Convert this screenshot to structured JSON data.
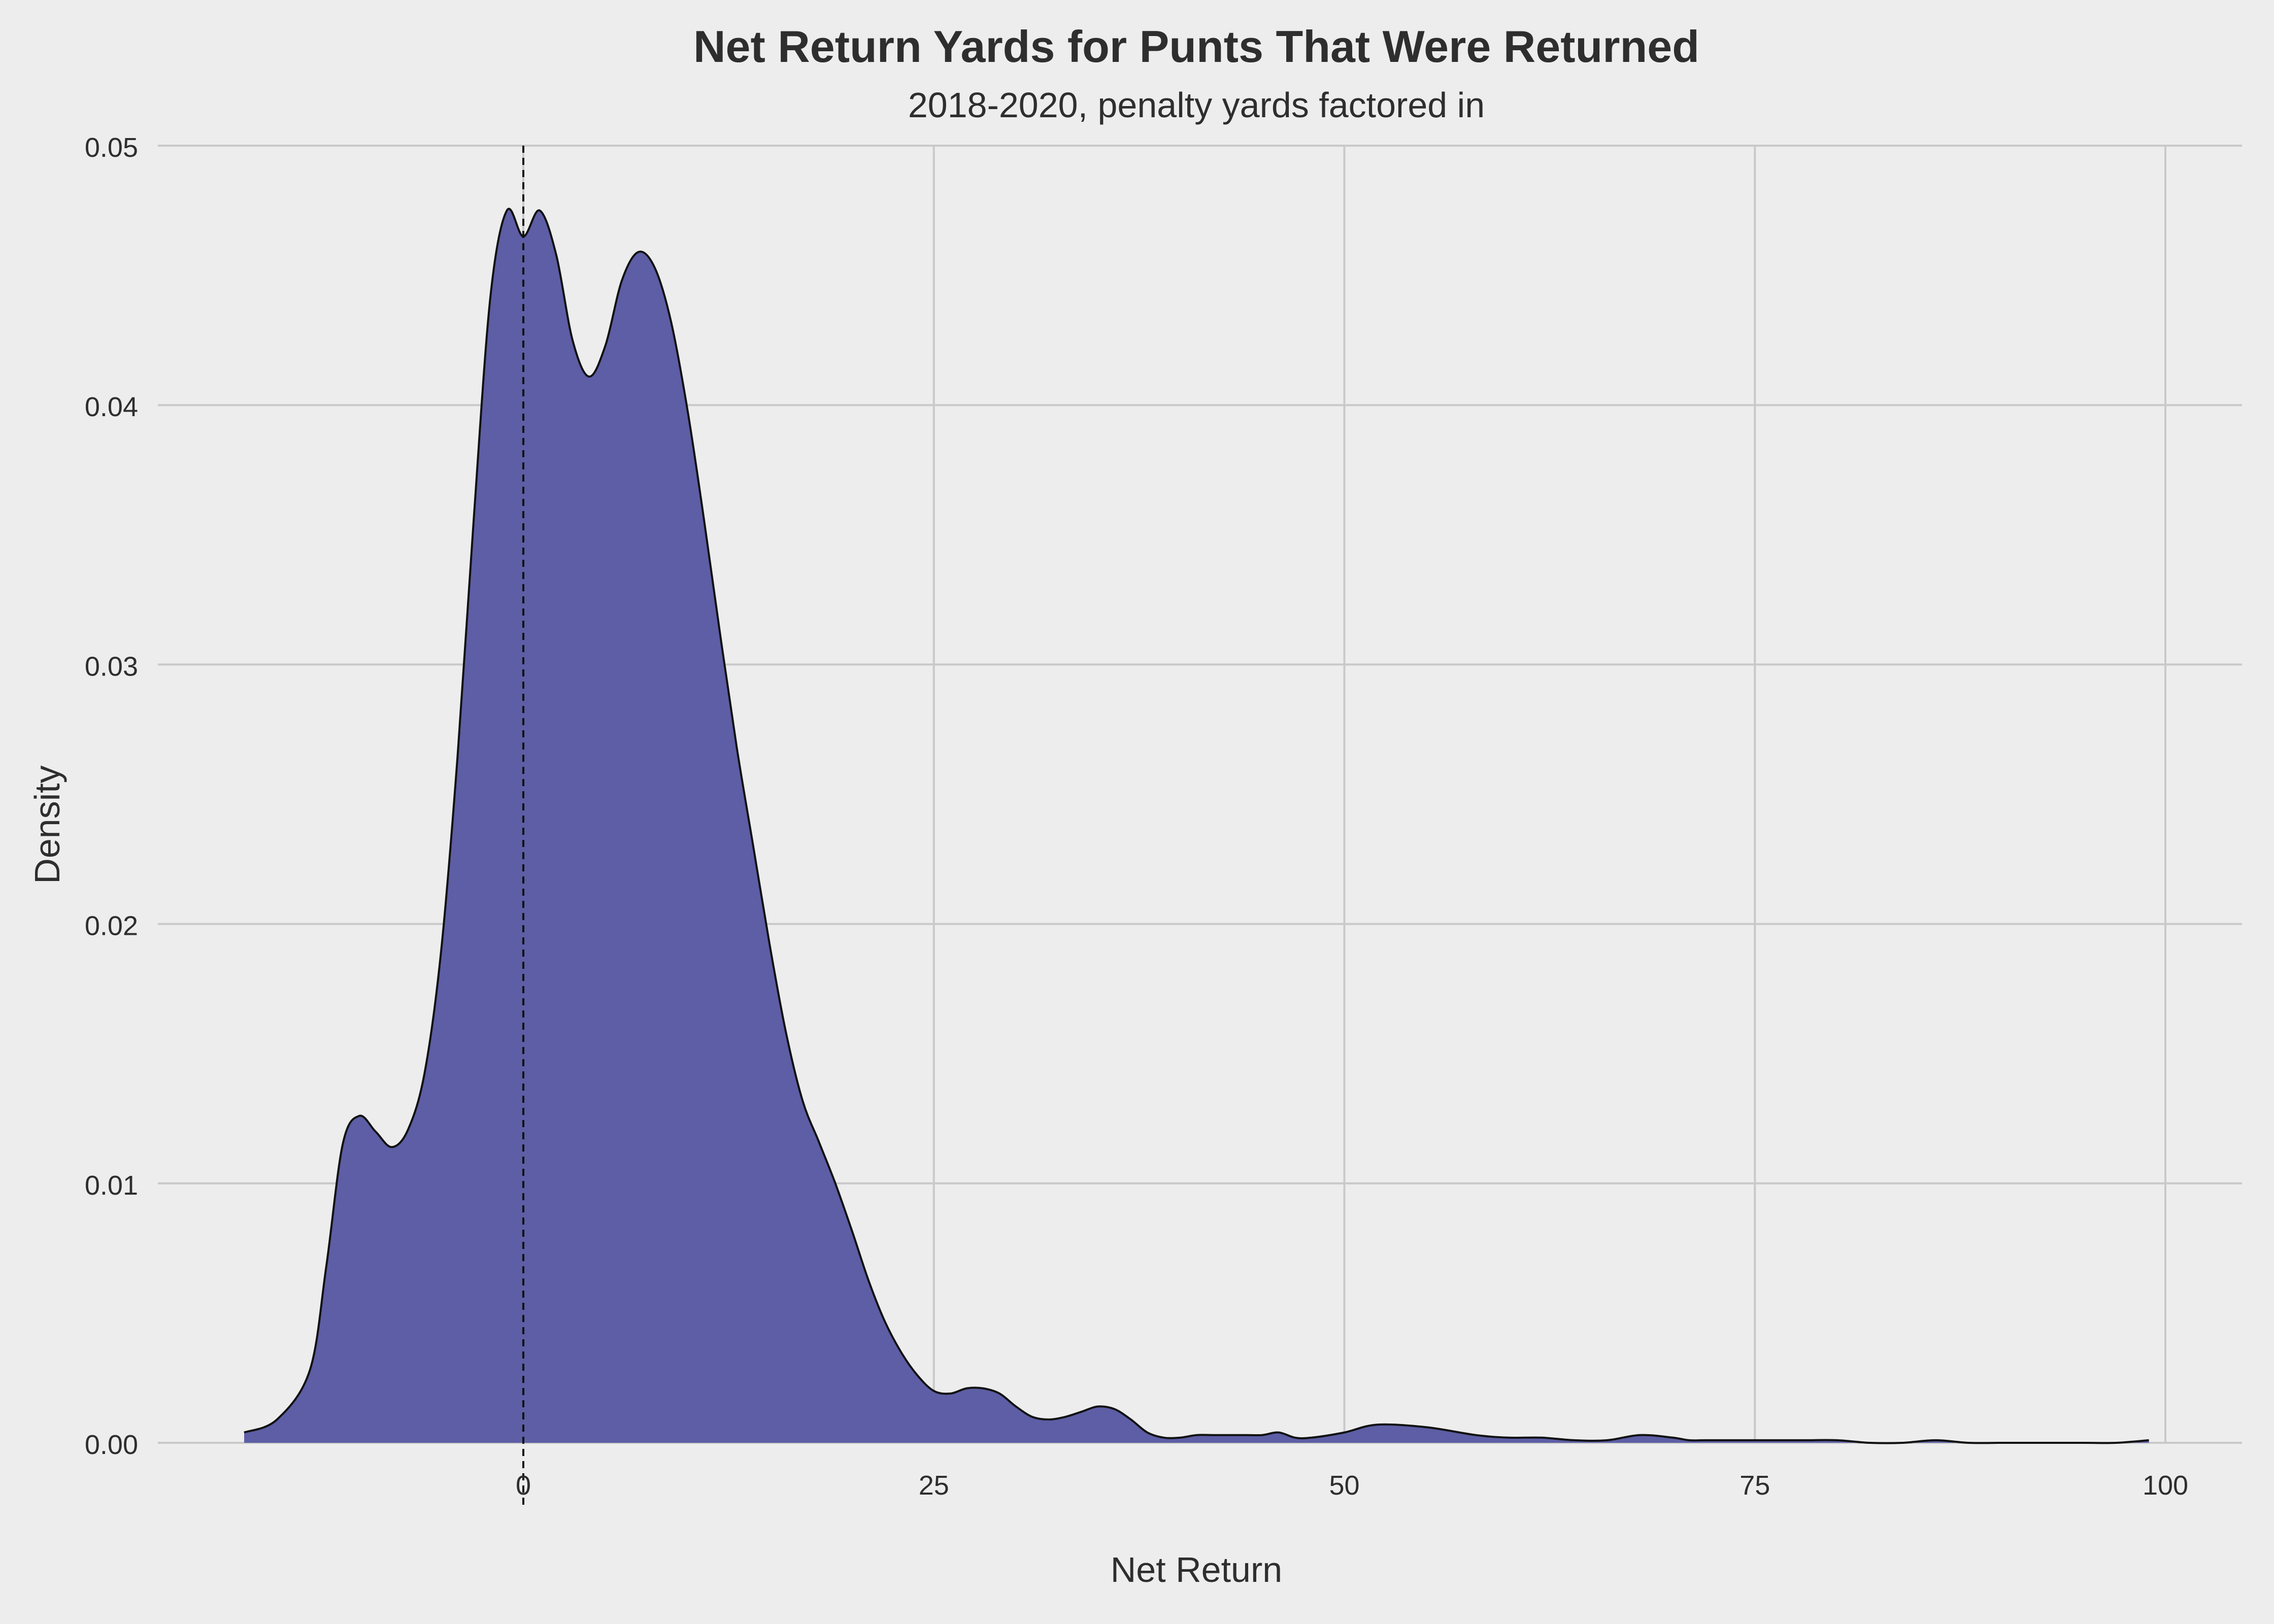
{
  "chart_data": {
    "type": "area",
    "title": "Net Return Yards for Punts That Were Returned",
    "subtitle": "2018-2020, penalty yards factored in",
    "xlabel": "Net Return",
    "ylabel": "Density",
    "xlim": [
      -17.5,
      104
    ],
    "ylim": [
      0,
      0.05
    ],
    "x_ticks": [
      0,
      25,
      50,
      75,
      100
    ],
    "x_tick_labels": [
      "0",
      "25",
      "50",
      "75",
      "100"
    ],
    "y_ticks": [
      0.0,
      0.01,
      0.02,
      0.03,
      0.04,
      0.05
    ],
    "y_tick_labels": [
      "0.00",
      "0.01",
      "0.02",
      "0.03",
      "0.04",
      "0.05"
    ],
    "grid": true,
    "reference_line": {
      "x": 0,
      "style": "dashed"
    },
    "colors": {
      "fill": "#5d5ea5",
      "outline": "#111111",
      "background": "#ededed",
      "grid": "#c9c9c9",
      "text": "#2e2e2e"
    },
    "series": [
      {
        "x": [
          -17,
          -15,
          -13,
          -12,
          -11,
          -10,
          -9,
          -8,
          -7,
          -6,
          -5,
          -4,
          -3,
          -2,
          -1,
          0,
          1,
          2,
          3,
          4,
          5,
          6,
          7,
          8,
          9,
          10,
          11,
          12,
          13,
          14,
          15,
          16,
          17,
          18,
          19,
          20,
          21,
          22,
          23,
          24,
          25,
          26,
          27,
          28,
          29,
          30,
          31,
          32,
          33,
          34,
          35,
          36,
          37,
          38,
          39,
          40,
          41,
          42,
          43,
          44,
          45,
          46,
          47,
          48,
          50,
          52,
          55,
          58,
          60,
          62,
          64,
          66,
          68,
          70,
          71,
          72,
          74,
          76,
          78,
          80,
          82,
          84,
          86,
          88,
          90,
          92,
          95,
          97,
          99
        ],
        "y": [
          0.0004,
          0.0009,
          0.0028,
          0.0068,
          0.0115,
          0.0126,
          0.012,
          0.0114,
          0.0121,
          0.0143,
          0.019,
          0.0265,
          0.0358,
          0.0442,
          0.0475,
          0.0465,
          0.0475,
          0.0458,
          0.0425,
          0.0411,
          0.0423,
          0.0448,
          0.0459,
          0.0453,
          0.0432,
          0.0398,
          0.0356,
          0.0311,
          0.0268,
          0.023,
          0.0192,
          0.0158,
          0.0132,
          0.0116,
          0.01,
          0.0082,
          0.0063,
          0.0047,
          0.0035,
          0.0026,
          0.002,
          0.0019,
          0.0021,
          0.0021,
          0.0019,
          0.0014,
          0.001,
          0.0009,
          0.001,
          0.0012,
          0.0014,
          0.0013,
          0.0009,
          0.0004,
          0.0002,
          0.0002,
          0.0003,
          0.0003,
          0.0003,
          0.0003,
          0.0003,
          0.0004,
          0.0002,
          0.0002,
          0.0004,
          0.0007,
          0.0006,
          0.0003,
          0.0002,
          0.0002,
          0.0001,
          0.0001,
          0.0003,
          0.0002,
          0.0001,
          0.0001,
          0.0001,
          0.0001,
          0.0001,
          0.0001,
          0.0,
          0.0,
          0.0001,
          0.0,
          0.0,
          0.0,
          0.0,
          0.0,
          0.0001
        ]
      }
    ]
  }
}
